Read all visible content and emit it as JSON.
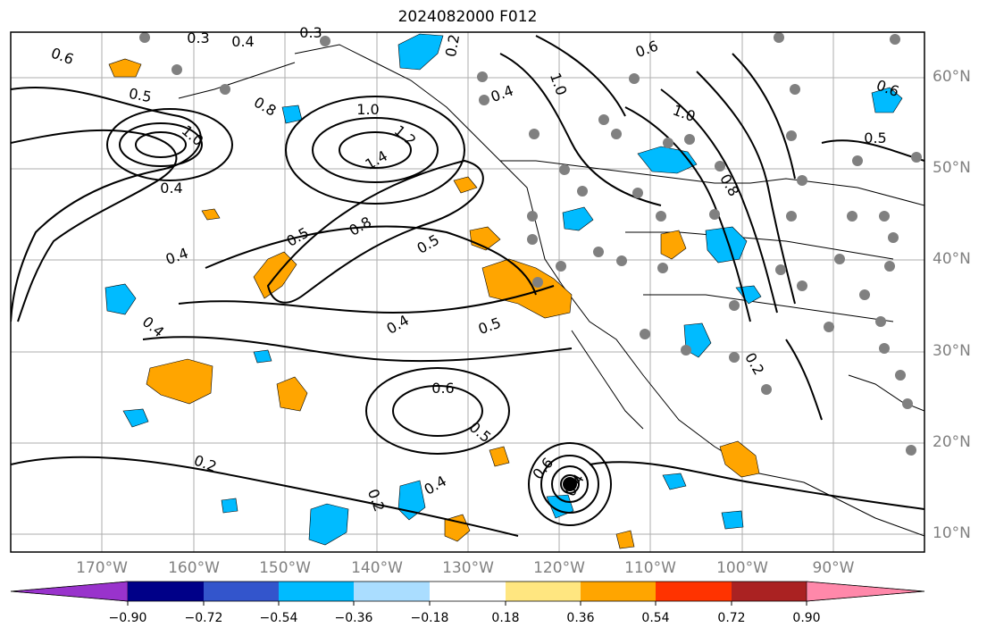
{
  "title": "2024082000 F012",
  "latitude_labels": [
    "60°N",
    "50°N",
    "40°N",
    "30°N",
    "20°N",
    "10°N"
  ],
  "longitude_labels": [
    "170°W",
    "160°W",
    "150°W",
    "140°W",
    "130°W",
    "120°W",
    "110°W",
    "100°W",
    "90°W"
  ],
  "contour_labels": [
    "0.3",
    "0.4",
    "0.3",
    "0.6",
    "0.5",
    "1.0",
    "0.8",
    "1.0",
    "1.2",
    "1.4",
    "0.4",
    "0.5",
    "0.8",
    "0.5",
    "0.4",
    "0.4",
    "0.4",
    "0.5",
    "0.6",
    "0.5",
    "0.2",
    "0.2",
    "0.4",
    "0.6",
    "0.4",
    "0.2",
    "0.6",
    "1.0",
    "0.4",
    "1.0",
    "0.6",
    "0.5",
    "0.8",
    "0.2"
  ],
  "colorbar": {
    "colors": [
      "#9933cc",
      "#000088",
      "#3355cc",
      "#00bbff",
      "#aaddff",
      "#ffffff",
      "#ffe680",
      "#ffa500",
      "#ff3300",
      "#aa2222",
      "#ff88aa"
    ],
    "tick_labels": [
      "−0.90",
      "−0.72",
      "−0.54",
      "−0.36",
      "−0.18",
      "0.18",
      "0.36",
      "0.54",
      "0.72",
      "0.90"
    ]
  }
}
